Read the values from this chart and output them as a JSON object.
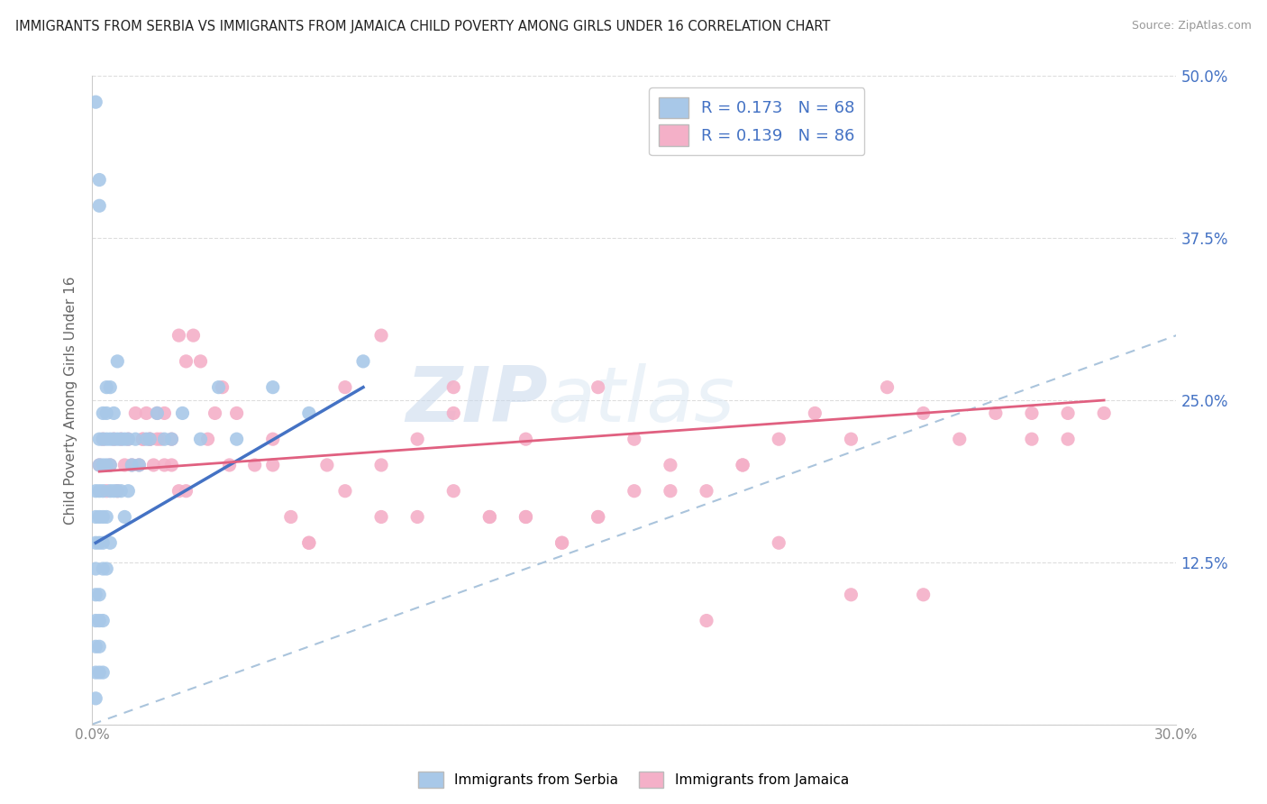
{
  "title": "IMMIGRANTS FROM SERBIA VS IMMIGRANTS FROM JAMAICA CHILD POVERTY AMONG GIRLS UNDER 16 CORRELATION CHART",
  "source": "Source: ZipAtlas.com",
  "ylabel": "Child Poverty Among Girls Under 16",
  "xlim": [
    0,
    0.3
  ],
  "ylim": [
    0,
    0.5
  ],
  "xticks": [
    0.0,
    0.05,
    0.1,
    0.15,
    0.2,
    0.25,
    0.3
  ],
  "xticklabels": [
    "0.0%",
    "",
    "",
    "",
    "",
    "",
    "30.0%"
  ],
  "yticks": [
    0.0,
    0.125,
    0.25,
    0.375,
    0.5
  ],
  "right_yticklabels": [
    "",
    "12.5%",
    "25.0%",
    "37.5%",
    "50.0%"
  ],
  "serbia_R": 0.173,
  "serbia_N": 68,
  "jamaica_R": 0.139,
  "jamaica_N": 86,
  "serbia_color": "#a8c8e8",
  "jamaica_color": "#f4b0c8",
  "serbia_line_color": "#4472c4",
  "jamaica_line_color": "#e06080",
  "diag_line_color": "#aac4dc",
  "watermark_zip": "ZIP",
  "watermark_atlas": "atlas",
  "legend_label_serbia": "Immigrants from Serbia",
  "legend_label_jamaica": "Immigrants from Jamaica",
  "serbia_x": [
    0.001,
    0.001,
    0.001,
    0.001,
    0.001,
    0.001,
    0.001,
    0.001,
    0.001,
    0.001,
    0.002,
    0.002,
    0.002,
    0.002,
    0.002,
    0.002,
    0.002,
    0.002,
    0.002,
    0.002,
    0.002,
    0.003,
    0.003,
    0.003,
    0.003,
    0.003,
    0.003,
    0.003,
    0.003,
    0.003,
    0.004,
    0.004,
    0.004,
    0.004,
    0.004,
    0.004,
    0.005,
    0.005,
    0.005,
    0.005,
    0.005,
    0.006,
    0.006,
    0.006,
    0.007,
    0.007,
    0.007,
    0.008,
    0.008,
    0.009,
    0.009,
    0.01,
    0.01,
    0.011,
    0.012,
    0.013,
    0.015,
    0.016,
    0.018,
    0.02,
    0.022,
    0.025,
    0.03,
    0.035,
    0.04,
    0.05,
    0.06,
    0.075
  ],
  "serbia_y": [
    0.48,
    0.18,
    0.16,
    0.14,
    0.12,
    0.1,
    0.08,
    0.06,
    0.04,
    0.02,
    0.42,
    0.4,
    0.22,
    0.2,
    0.18,
    0.16,
    0.14,
    0.1,
    0.08,
    0.06,
    0.04,
    0.24,
    0.22,
    0.2,
    0.18,
    0.16,
    0.14,
    0.12,
    0.08,
    0.04,
    0.26,
    0.24,
    0.22,
    0.2,
    0.16,
    0.12,
    0.26,
    0.22,
    0.2,
    0.18,
    0.14,
    0.24,
    0.22,
    0.18,
    0.28,
    0.22,
    0.18,
    0.22,
    0.18,
    0.22,
    0.16,
    0.22,
    0.18,
    0.2,
    0.22,
    0.2,
    0.22,
    0.22,
    0.24,
    0.22,
    0.22,
    0.24,
    0.22,
    0.26,
    0.22,
    0.26,
    0.24,
    0.28
  ],
  "jamaica_x": [
    0.002,
    0.003,
    0.004,
    0.005,
    0.006,
    0.007,
    0.008,
    0.009,
    0.01,
    0.011,
    0.012,
    0.013,
    0.014,
    0.015,
    0.016,
    0.017,
    0.018,
    0.019,
    0.02,
    0.022,
    0.024,
    0.026,
    0.028,
    0.03,
    0.032,
    0.034,
    0.036,
    0.038,
    0.04,
    0.045,
    0.05,
    0.055,
    0.06,
    0.065,
    0.07,
    0.08,
    0.09,
    0.1,
    0.11,
    0.12,
    0.13,
    0.14,
    0.15,
    0.16,
    0.17,
    0.18,
    0.19,
    0.2,
    0.21,
    0.22,
    0.23,
    0.24,
    0.25,
    0.26,
    0.27,
    0.28,
    0.06,
    0.08,
    0.1,
    0.12,
    0.14,
    0.16,
    0.18,
    0.08,
    0.1,
    0.12,
    0.14,
    0.05,
    0.07,
    0.09,
    0.11,
    0.13,
    0.15,
    0.17,
    0.19,
    0.21,
    0.23,
    0.014,
    0.016,
    0.018,
    0.02,
    0.022,
    0.024,
    0.026,
    0.26,
    0.27
  ],
  "jamaica_y": [
    0.2,
    0.22,
    0.18,
    0.2,
    0.22,
    0.18,
    0.22,
    0.2,
    0.22,
    0.2,
    0.24,
    0.2,
    0.22,
    0.24,
    0.22,
    0.2,
    0.22,
    0.22,
    0.24,
    0.22,
    0.3,
    0.28,
    0.3,
    0.28,
    0.22,
    0.24,
    0.26,
    0.2,
    0.24,
    0.2,
    0.22,
    0.16,
    0.14,
    0.2,
    0.26,
    0.3,
    0.22,
    0.24,
    0.16,
    0.16,
    0.14,
    0.16,
    0.22,
    0.2,
    0.08,
    0.2,
    0.22,
    0.24,
    0.22,
    0.26,
    0.24,
    0.22,
    0.24,
    0.22,
    0.22,
    0.24,
    0.14,
    0.16,
    0.26,
    0.22,
    0.16,
    0.18,
    0.2,
    0.2,
    0.18,
    0.16,
    0.26,
    0.2,
    0.18,
    0.16,
    0.16,
    0.14,
    0.18,
    0.18,
    0.14,
    0.1,
    0.1,
    0.22,
    0.22,
    0.24,
    0.2,
    0.2,
    0.18,
    0.18,
    0.24,
    0.24
  ],
  "serbia_line_x": [
    0.001,
    0.075
  ],
  "serbia_line_y": [
    0.14,
    0.26
  ],
  "jamaica_line_x": [
    0.002,
    0.28
  ],
  "jamaica_line_y": [
    0.195,
    0.25
  ],
  "background_color": "#ffffff",
  "grid_color": "#dddddd",
  "tick_color": "#888888",
  "ytick_label_color": "#4472c4",
  "xtick_label_color": "#888888"
}
